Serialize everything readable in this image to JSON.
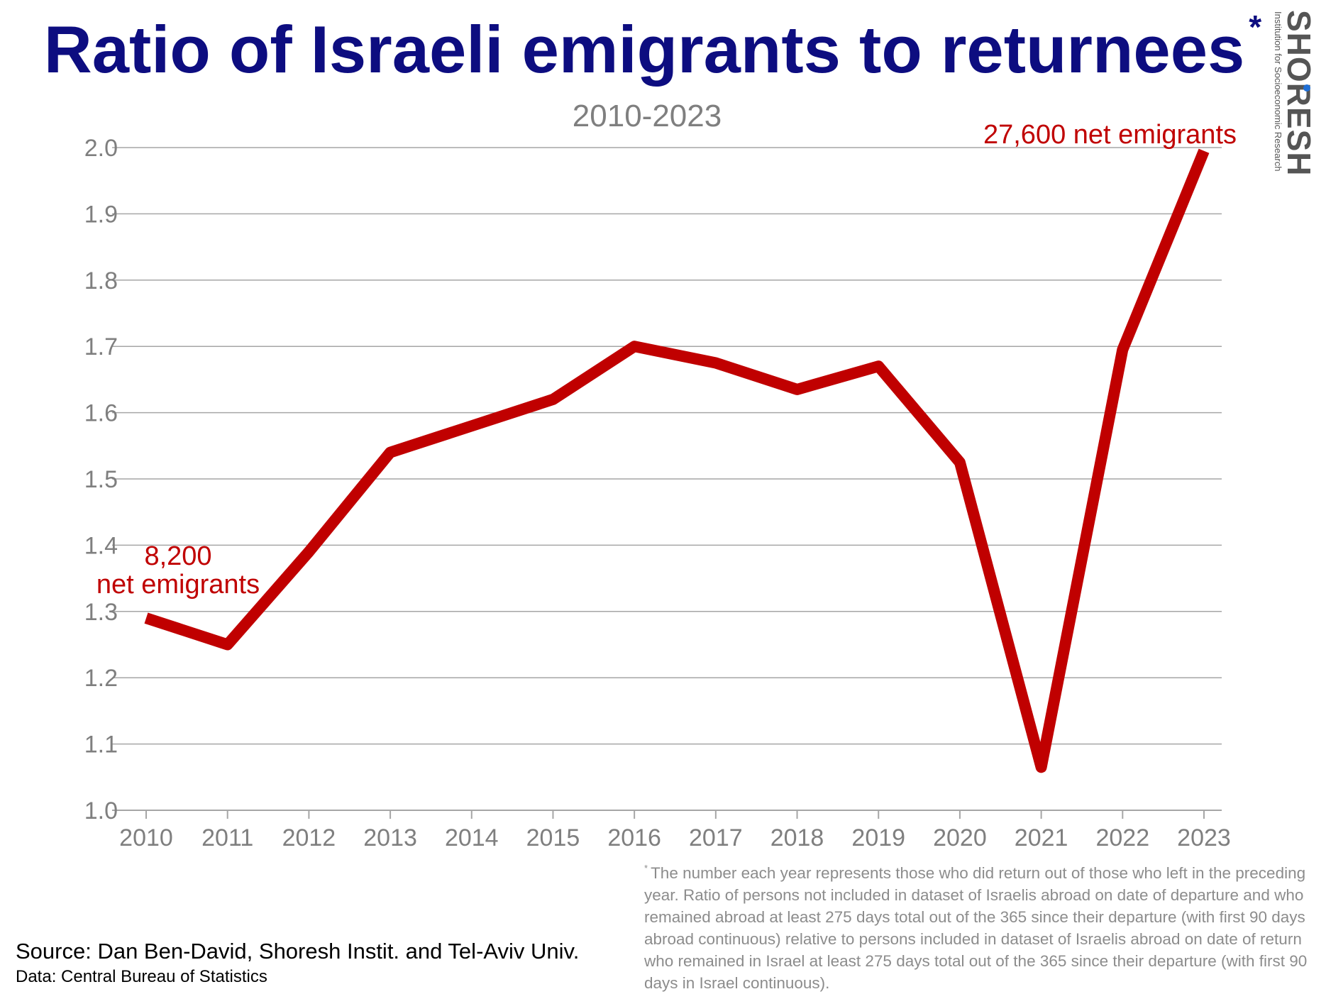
{
  "title": "Ratio of Israeli emigrants to returnees",
  "title_mark": "*",
  "subtitle": "2010-2023",
  "logo": {
    "name": "SHORESH",
    "tagline": "Institution for Socioeconomic Research"
  },
  "source": "Source: Dan Ben-David, Shoresh Instit. and Tel-Aviv Univ.",
  "data_credit": "Data:  Central Bureau of Statistics",
  "footnote": {
    "mark": "*",
    "text": "The number each year represents those who did return out of those who left in the preceding year. Ratio of persons not included in dataset of Israelis abroad on date of departure and who remained abroad at least 275 days total out of the 365 since their departure (with first 90 days abroad continuous) relative to persons included in dataset of Israelis abroad on date of return who remained in Israel at least 275 days total out of the 365 since their departure (with first 90 days in Israel continuous)."
  },
  "colors": {
    "title": "#0d0d80",
    "line": "#c00000",
    "annotation": "#c00000",
    "axis_text": "#7f7f7f",
    "grid": "#a6a6a6"
  },
  "chart_data": {
    "type": "line",
    "x": [
      2010,
      2011,
      2012,
      2013,
      2014,
      2015,
      2016,
      2017,
      2018,
      2019,
      2020,
      2021,
      2022,
      2023
    ],
    "series": [
      {
        "values": [
          1.29,
          1.25,
          1.39,
          1.54,
          1.58,
          1.62,
          1.7,
          1.675,
          1.635,
          1.67,
          1.525,
          1.065,
          1.695,
          1.995
        ]
      }
    ],
    "ylim": [
      1.0,
      2.0
    ],
    "yticks": [
      "1.0",
      "1.1",
      "1.2",
      "1.3",
      "1.4",
      "1.5",
      "1.6",
      "1.7",
      "1.8",
      "1.9",
      "2.0"
    ],
    "xticks": [
      "2010",
      "2011",
      "2012",
      "2013",
      "2014",
      "2015",
      "2016",
      "2017",
      "2018",
      "2019",
      "2020",
      "2021",
      "2022",
      "2023"
    ],
    "grid": true,
    "legend": "none",
    "annotations": [
      {
        "year": 2010,
        "lines": [
          "8,200",
          "net emigrants"
        ]
      },
      {
        "year": 2023,
        "lines": [
          "27,600 net emigrants"
        ]
      }
    ]
  }
}
